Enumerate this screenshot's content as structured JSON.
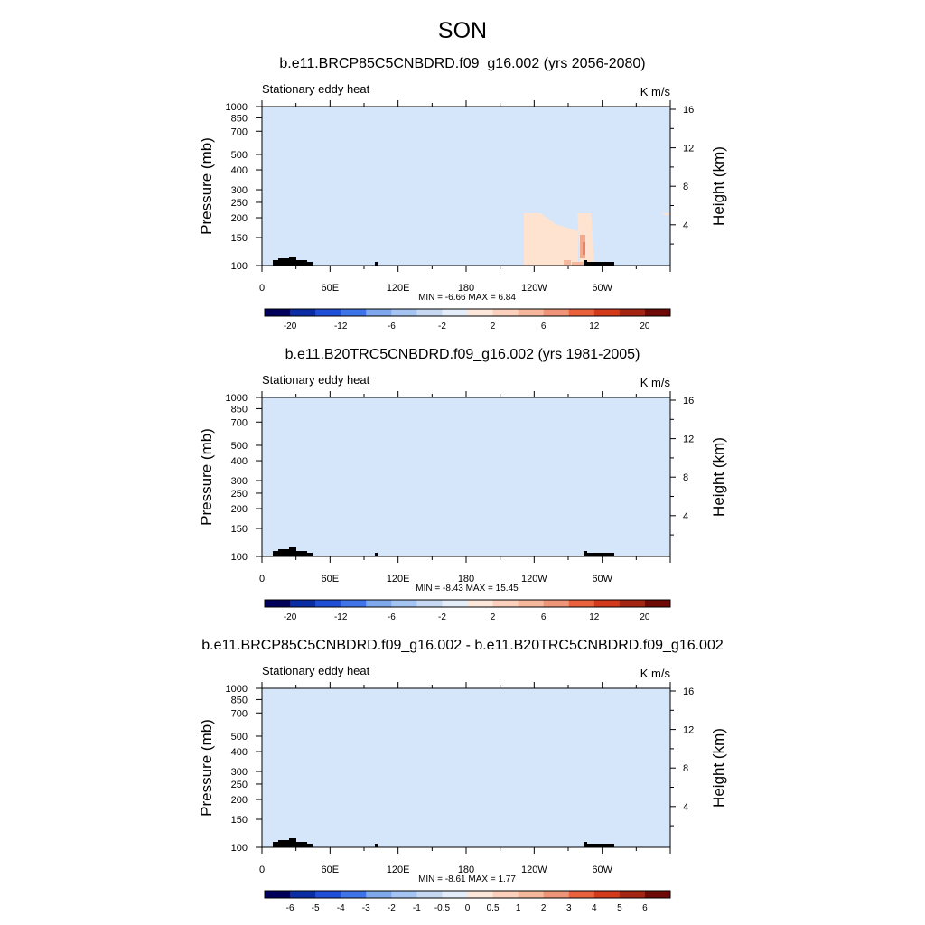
{
  "figure": {
    "title": "SON"
  },
  "colors": {
    "blue_fill": "#d6e6fa",
    "pink_fill": "#fde3d0",
    "topography": "#000000"
  },
  "chart_data": [
    {
      "type": "heatmap",
      "title": "b.e11.BRCP85C5CNBDRD.f09_g16.002 (yrs 2056-2080)",
      "subtitle_left": "Stationary eddy heat",
      "units": "K m/s",
      "ylabel": "Pressure (mb)",
      "ylabel_right": "Height (km)",
      "x_ticks": [
        "0",
        "60E",
        "120E",
        "180",
        "120W",
        "60W"
      ],
      "y_ticks": [
        "100",
        "150",
        "200",
        "250",
        "300",
        "400",
        "500",
        "700",
        "850",
        "1000"
      ],
      "y_ticks_right": [
        "16",
        "12",
        "8",
        "4"
      ],
      "stats": "MIN =  -6.66  MAX =   6.84",
      "colorbar": [
        "-20",
        "-12",
        "-6",
        "-2",
        "2",
        "6",
        "12",
        "20"
      ],
      "y_scale": "log-pressure",
      "ylim": [
        1000,
        100
      ]
    },
    {
      "type": "heatmap",
      "title": "b.e11.B20TRC5CNBDRD.f09_g16.002 (yrs 1981-2005)",
      "subtitle_left": "Stationary eddy heat",
      "units": "K m/s",
      "ylabel": "Pressure (mb)",
      "ylabel_right": "Height (km)",
      "x_ticks": [
        "0",
        "60E",
        "120E",
        "180",
        "120W",
        "60W"
      ],
      "y_ticks": [
        "100",
        "150",
        "200",
        "250",
        "300",
        "400",
        "500",
        "700",
        "850",
        "1000"
      ],
      "y_ticks_right": [
        "16",
        "12",
        "8",
        "4"
      ],
      "stats": "MIN =  -8.43  MAX =  15.45",
      "colorbar": [
        "-20",
        "-12",
        "-6",
        "-2",
        "2",
        "6",
        "12",
        "20"
      ],
      "y_scale": "log-pressure",
      "ylim": [
        1000,
        100
      ]
    },
    {
      "type": "heatmap",
      "title": "b.e11.BRCP85C5CNBDRD.f09_g16.002 - b.e11.B20TRC5CNBDRD.f09_g16.002",
      "subtitle_left": "Stationary eddy heat",
      "units": "K m/s",
      "ylabel": "Pressure (mb)",
      "ylabel_right": "Height (km)",
      "x_ticks": [
        "0",
        "60E",
        "120E",
        "180",
        "120W",
        "60W"
      ],
      "y_ticks": [
        "100",
        "150",
        "200",
        "250",
        "300",
        "400",
        "500",
        "700",
        "850",
        "1000"
      ],
      "y_ticks_right": [
        "16",
        "12",
        "8",
        "4"
      ],
      "stats": "MIN =  -8.61  MAX =   1.77",
      "colorbar": [
        "-6",
        "-5",
        "-4",
        "-3",
        "-2",
        "-1",
        "-0.5",
        "0",
        "0.5",
        "1",
        "2",
        "3",
        "4",
        "5",
        "6"
      ],
      "y_scale": "log-pressure",
      "ylim": [
        1000,
        100
      ]
    }
  ]
}
